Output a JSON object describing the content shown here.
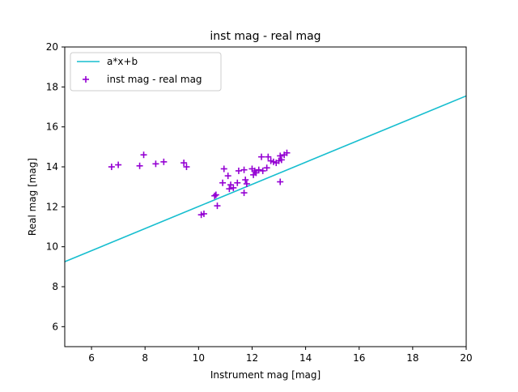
{
  "chart_data": {
    "type": "scatter",
    "title": "inst mag - real mag",
    "xlabel": "Instrument mag [mag]",
    "ylabel": "Real mag [mag]",
    "xlim": [
      5,
      20
    ],
    "ylim": [
      5,
      20
    ],
    "xticks": [
      6,
      8,
      10,
      12,
      14,
      16,
      18,
      20
    ],
    "yticks": [
      6,
      8,
      10,
      12,
      14,
      16,
      18,
      20
    ],
    "grid": false,
    "legend_position": "top-left",
    "fit_line": {
      "name": "a*x+b",
      "color": "#17becf",
      "x": [
        5,
        20
      ],
      "y": [
        9.25,
        17.55
      ]
    },
    "series": [
      {
        "name": "inst mag - real mag",
        "color": "#9400d3",
        "marker": "+",
        "points": [
          [
            6.75,
            14.0
          ],
          [
            7.0,
            14.1
          ],
          [
            7.8,
            14.05
          ],
          [
            7.95,
            14.6
          ],
          [
            8.4,
            14.15
          ],
          [
            8.7,
            14.25
          ],
          [
            9.45,
            14.2
          ],
          [
            9.55,
            14.0
          ],
          [
            10.1,
            11.6
          ],
          [
            10.2,
            11.65
          ],
          [
            10.6,
            12.55
          ],
          [
            10.65,
            12.6
          ],
          [
            10.7,
            12.05
          ],
          [
            10.9,
            13.2
          ],
          [
            10.95,
            13.9
          ],
          [
            11.1,
            13.55
          ],
          [
            11.15,
            12.9
          ],
          [
            11.2,
            13.1
          ],
          [
            11.3,
            12.95
          ],
          [
            11.45,
            13.2
          ],
          [
            11.5,
            13.8
          ],
          [
            11.7,
            13.85
          ],
          [
            11.7,
            12.7
          ],
          [
            11.75,
            13.35
          ],
          [
            11.8,
            13.15
          ],
          [
            12.0,
            13.9
          ],
          [
            12.05,
            13.6
          ],
          [
            12.1,
            13.8
          ],
          [
            12.15,
            13.7
          ],
          [
            12.25,
            13.85
          ],
          [
            12.35,
            14.5
          ],
          [
            12.4,
            13.8
          ],
          [
            12.55,
            13.95
          ],
          [
            12.6,
            14.5
          ],
          [
            12.7,
            14.3
          ],
          [
            12.8,
            14.25
          ],
          [
            12.9,
            14.2
          ],
          [
            13.0,
            14.3
          ],
          [
            13.05,
            14.55
          ],
          [
            13.05,
            13.25
          ],
          [
            13.1,
            14.35
          ],
          [
            13.2,
            14.6
          ],
          [
            13.3,
            14.7
          ]
        ]
      }
    ]
  }
}
